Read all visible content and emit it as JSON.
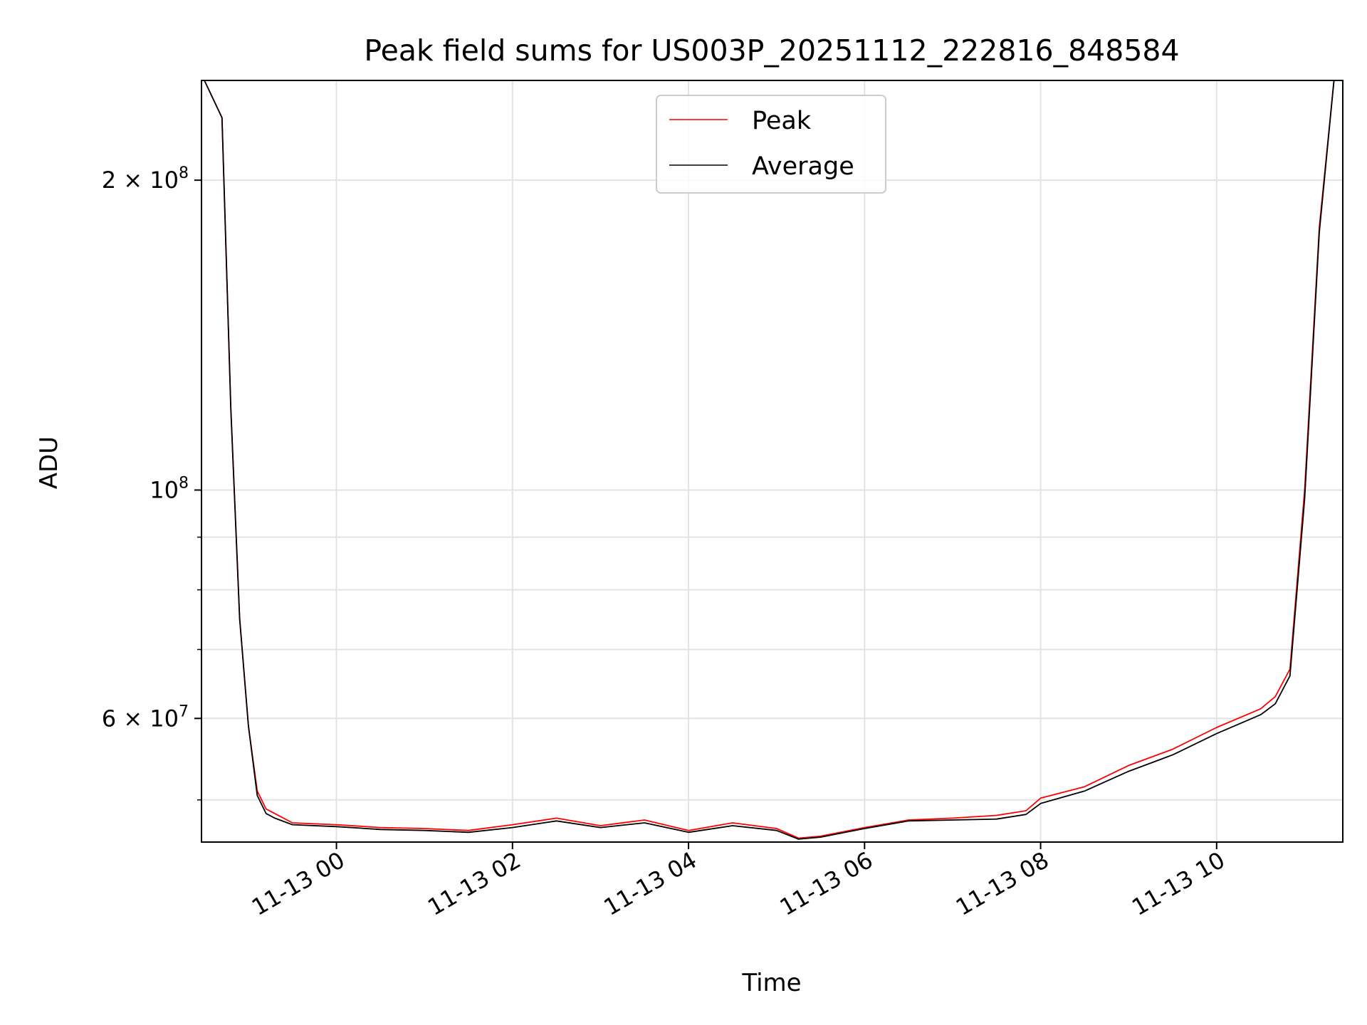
{
  "chart_data": {
    "type": "line",
    "title": "Peak field sums for US003P_20251112_222816_848584",
    "xlabel": "Time",
    "ylabel": "ADU",
    "yscale": "log",
    "ylim": [
      45500000,
      250000000
    ],
    "xlim": [
      "2025-11-12 22:28",
      "2025-11-13 11:26"
    ],
    "x_ticks": [
      "11-13 00",
      "11-13 02",
      "11-13 04",
      "11-13 06",
      "11-13 08",
      "11-13 10"
    ],
    "y_ticks": [
      {
        "value": 200000000,
        "label": "2 × 10⁸",
        "mantissa": "2",
        "exponent": "8"
      },
      {
        "value": 100000000,
        "label": "10⁸",
        "mantissa": "",
        "exponent": "8"
      },
      {
        "value": 60000000,
        "label": "6 × 10⁷",
        "mantissa": "6",
        "exponent": "7"
      }
    ],
    "grid": true,
    "legend_position": "top-center",
    "series": [
      {
        "name": "Peak",
        "color": "#ff0000",
        "x": [
          "2025-11-12 22:30",
          "2025-11-12 22:42",
          "2025-11-12 22:48",
          "2025-11-12 22:54",
          "2025-11-12 23:00",
          "2025-11-12 23:06",
          "2025-11-12 23:12",
          "2025-11-12 23:18",
          "2025-11-12 23:30",
          "2025-11-13 00:00",
          "2025-11-13 00:30",
          "2025-11-13 01:00",
          "2025-11-13 01:30",
          "2025-11-13 02:00",
          "2025-11-13 02:30",
          "2025-11-13 03:00",
          "2025-11-13 03:30",
          "2025-11-13 04:00",
          "2025-11-13 04:30",
          "2025-11-13 05:00",
          "2025-11-13 05:15",
          "2025-11-13 05:30",
          "2025-11-13 06:00",
          "2025-11-13 06:30",
          "2025-11-13 07:00",
          "2025-11-13 07:30",
          "2025-11-13 07:50",
          "2025-11-13 08:00",
          "2025-11-13 08:30",
          "2025-11-13 09:00",
          "2025-11-13 09:30",
          "2025-11-13 10:00",
          "2025-11-13 10:30",
          "2025-11-13 10:40",
          "2025-11-13 10:50",
          "2025-11-13 11:00",
          "2025-11-13 11:10",
          "2025-11-13 11:20"
        ],
        "y": [
          250000000,
          230000000,
          120000000,
          75000000,
          59000000,
          51000000,
          49000000,
          48500000,
          47500000,
          47300000,
          47000000,
          46900000,
          46700000,
          47300000,
          48000000,
          47200000,
          47800000,
          46700000,
          47500000,
          46900000,
          45900000,
          46100000,
          47000000,
          47800000,
          48000000,
          48300000,
          48800000,
          50200000,
          51500000,
          54000000,
          56000000,
          58800000,
          61300000,
          63000000,
          67000000,
          100000000,
          180000000,
          250000000
        ]
      },
      {
        "name": "Average",
        "color": "#000000",
        "x": [
          "2025-11-12 22:30",
          "2025-11-12 22:42",
          "2025-11-12 22:48",
          "2025-11-12 22:54",
          "2025-11-12 23:00",
          "2025-11-12 23:06",
          "2025-11-12 23:12",
          "2025-11-12 23:18",
          "2025-11-12 23:30",
          "2025-11-13 00:00",
          "2025-11-13 00:30",
          "2025-11-13 01:00",
          "2025-11-13 01:30",
          "2025-11-13 02:00",
          "2025-11-13 02:30",
          "2025-11-13 03:00",
          "2025-11-13 03:30",
          "2025-11-13 04:00",
          "2025-11-13 04:30",
          "2025-11-13 05:00",
          "2025-11-13 05:15",
          "2025-11-13 05:30",
          "2025-11-13 06:00",
          "2025-11-13 06:30",
          "2025-11-13 07:00",
          "2025-11-13 07:30",
          "2025-11-13 07:50",
          "2025-11-13 08:00",
          "2025-11-13 08:30",
          "2025-11-13 09:00",
          "2025-11-13 09:30",
          "2025-11-13 10:00",
          "2025-11-13 10:30",
          "2025-11-13 10:40",
          "2025-11-13 10:50",
          "2025-11-13 11:00",
          "2025-11-13 11:10",
          "2025-11-13 11:20"
        ],
        "y": [
          250000000,
          230000000,
          120000000,
          75000000,
          59000000,
          50500000,
          48500000,
          48000000,
          47300000,
          47100000,
          46800000,
          46700000,
          46500000,
          47000000,
          47700000,
          47000000,
          47500000,
          46500000,
          47200000,
          46700000,
          45800000,
          46000000,
          46900000,
          47700000,
          47800000,
          47900000,
          48400000,
          49600000,
          51000000,
          53300000,
          55300000,
          58000000,
          60500000,
          62000000,
          66000000,
          98000000,
          178000000,
          250000000
        ]
      }
    ]
  }
}
